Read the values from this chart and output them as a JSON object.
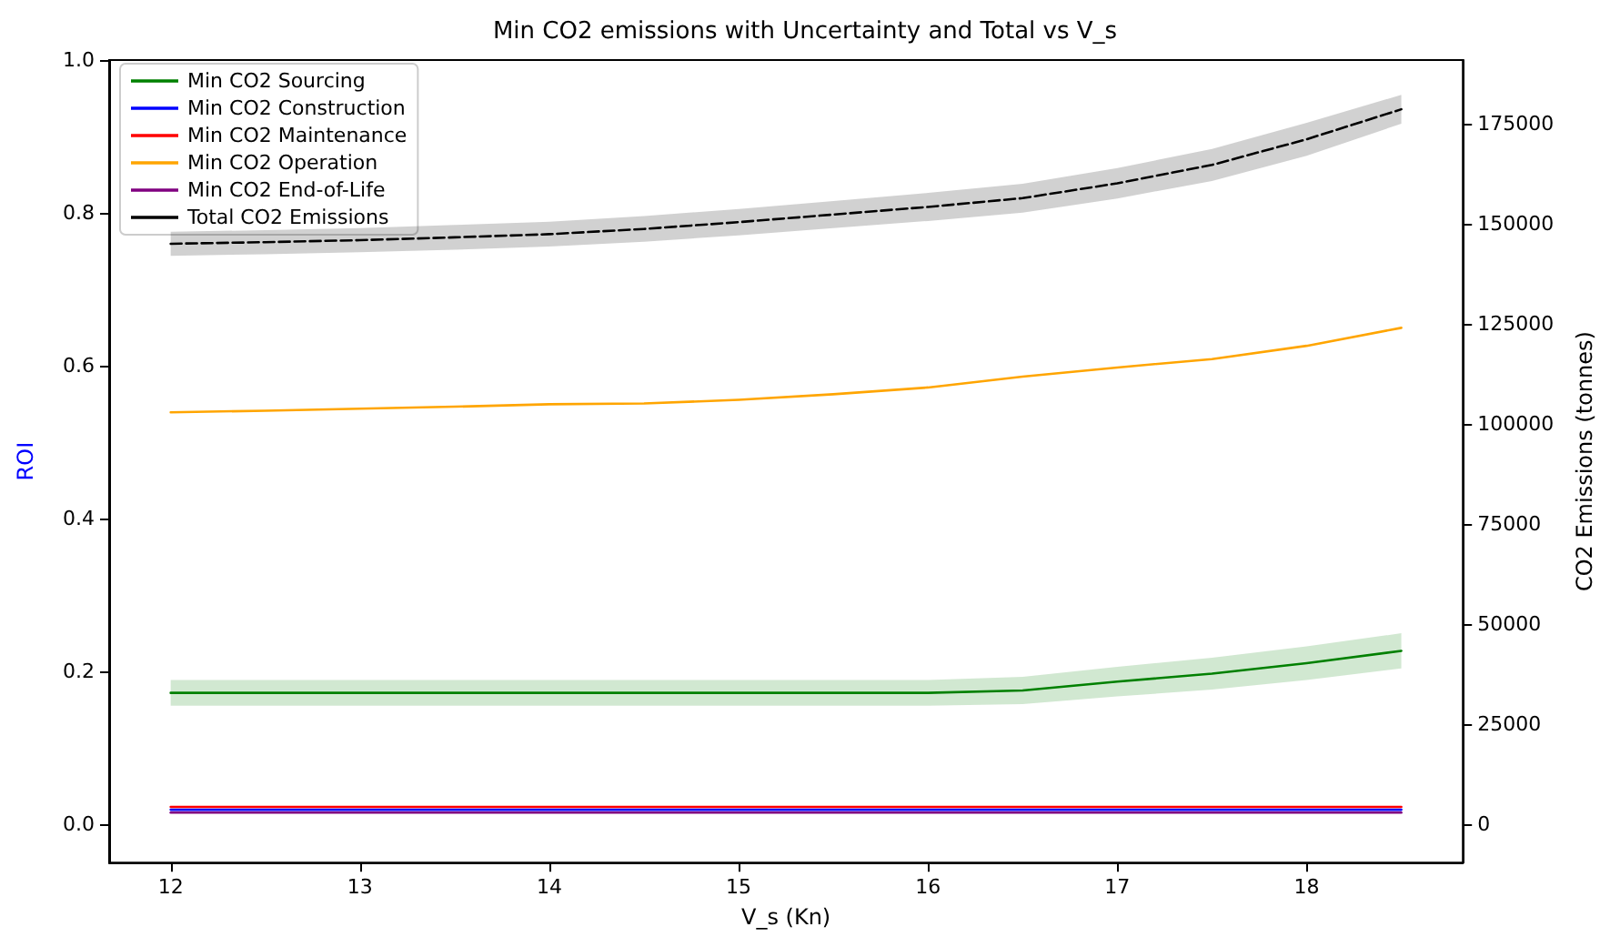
{
  "chart_data": {
    "type": "line",
    "title": "Min CO2 emissions with Uncertainty and Total vs V_s",
    "xlabel": "V_s (Kn)",
    "ylabel": "ROI",
    "y2label": "CO2 Emissions (tonnes)",
    "x": [
      12,
      12.5,
      13,
      13.5,
      14,
      14.5,
      15,
      15.5,
      16,
      16.5,
      17,
      17.5,
      18,
      18.5
    ],
    "series": [
      {
        "name": "Min CO2 Sourcing",
        "color": "#008000",
        "axis": "y2",
        "values": [
          32900,
          32900,
          32900,
          32900,
          32900,
          32900,
          32900,
          32900,
          32900,
          33500,
          35700,
          37700,
          40300,
          43400
        ],
        "lower": [
          29700,
          29700,
          29700,
          29700,
          29700,
          29700,
          29700,
          29700,
          29700,
          30100,
          32000,
          33700,
          36100,
          39000
        ],
        "upper": [
          36100,
          36100,
          36100,
          36100,
          36100,
          36100,
          36100,
          36100,
          36100,
          36900,
          39400,
          41700,
          44500,
          47800
        ]
      },
      {
        "name": "Min CO2 Construction",
        "color": "#0000ff",
        "axis": "y2",
        "values": [
          3700,
          3700,
          3700,
          3700,
          3700,
          3700,
          3700,
          3700,
          3700,
          3700,
          3700,
          3700,
          3700,
          3700
        ]
      },
      {
        "name": "Min CO2 Maintenance",
        "color": "#ff0000",
        "axis": "y2",
        "values": [
          4400,
          4400,
          4400,
          4400,
          4400,
          4400,
          4400,
          4400,
          4400,
          4400,
          4400,
          4400,
          4400,
          4400
        ]
      },
      {
        "name": "Min CO2 Operation",
        "color": "#ffa500",
        "axis": "y2",
        "values": [
          103000,
          103400,
          103900,
          104400,
          105000,
          105200,
          106100,
          107500,
          109200,
          111900,
          114200,
          116300,
          119600,
          124100
        ]
      },
      {
        "name": "Min CO2 End-of-Life",
        "color": "#800080",
        "axis": "y2",
        "values": [
          3000,
          3000,
          3000,
          3000,
          3000,
          3000,
          3000,
          3000,
          3000,
          3000,
          3000,
          3000,
          3000,
          3000
        ]
      },
      {
        "name": "Total CO2 Emissions",
        "color": "#000000",
        "axis": "y2",
        "line_style": "dashed",
        "values": [
          145100,
          145500,
          146000,
          146700,
          147500,
          148800,
          150500,
          152400,
          154300,
          156500,
          160200,
          164800,
          171200,
          178700
        ],
        "lower": [
          142100,
          142500,
          143000,
          143600,
          144400,
          145600,
          147200,
          149000,
          150800,
          152900,
          156400,
          160800,
          167100,
          175100
        ],
        "upper": [
          148100,
          148500,
          149000,
          149800,
          150600,
          152000,
          153800,
          155800,
          157800,
          160100,
          164000,
          168800,
          175300,
          182300
        ]
      }
    ],
    "xlim": [
      11.675,
      18.825
    ],
    "xticks": [
      12,
      13,
      14,
      15,
      16,
      17,
      18
    ],
    "ylim": [
      -0.05,
      1.0
    ],
    "yticks": [
      {
        "value": 0,
        "label": "0.0"
      },
      0.2,
      0.4,
      0.6,
      0.8,
      {
        "value": 1,
        "label": "1.0"
      }
    ],
    "y2lim": [
      -9500,
      191000
    ],
    "y2ticks": [
      0,
      25000,
      50000,
      75000,
      100000,
      125000,
      150000,
      175000
    ],
    "legend": "top left",
    "grid": false,
    "marker": "none",
    "line_style": "solid"
  }
}
